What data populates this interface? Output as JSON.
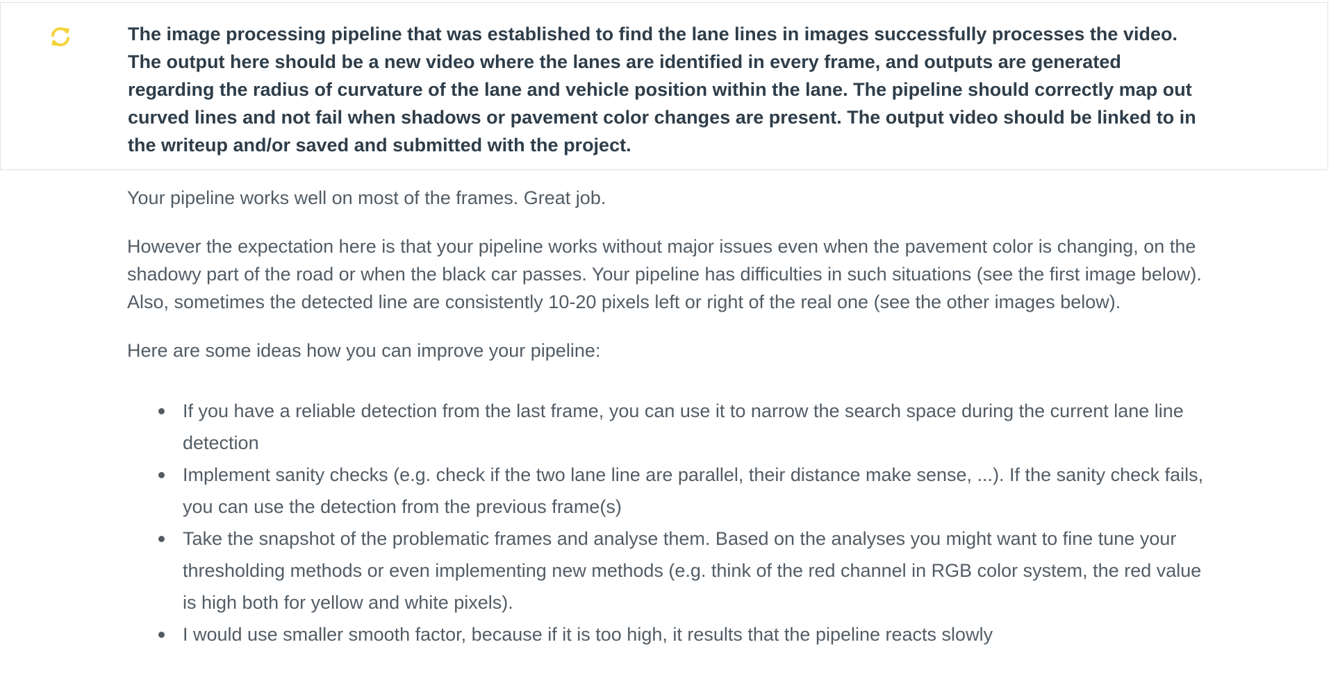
{
  "criteria": {
    "icon": "refresh-icon",
    "icon_color": "#f5d33b",
    "text": "The image processing pipeline that was established to find the lane lines in images successfully processes the video. The output here should be a new video where the lanes are identified in every frame, and outputs are generated regarding the radius of curvature of the lane and vehicle position within the lane. The pipeline should correctly map out curved lines and not fail when shadows or pavement color changes are present. The output video should be linked to in the writeup and/or saved and submitted with the project."
  },
  "review": {
    "paragraphs": [
      "Your pipeline works well on most of the frames. Great job.",
      "However the expectation here is that your pipeline works without major issues even when the pavement color is changing, on the shadowy part of the road or when the black car passes. Your pipeline has difficulties in such situations (see the first image below). Also, sometimes the detected line are consistently 10-20 pixels left or right of the real one (see the other images below).",
      "Here are some ideas how you can improve your pipeline:"
    ],
    "bullets": [
      "If you have a reliable detection from the last frame, you can use it to narrow the search space during the current lane line detection",
      "Implement sanity checks (e.g. check if the two lane line are parallel, their distance make sense, ...). If the sanity check fails, you can use the detection from the previous frame(s)",
      "Take the snapshot of the problematic frames and analyse them. Based on the analyses you might want to fine tune your thresholding methods or even implementing new methods (e.g. think of the red channel in RGB color system, the red value is high both for yellow and white pixels).",
      "I would use smaller smooth factor, because if it is too high, it results that the pipeline reacts slowly"
    ]
  }
}
